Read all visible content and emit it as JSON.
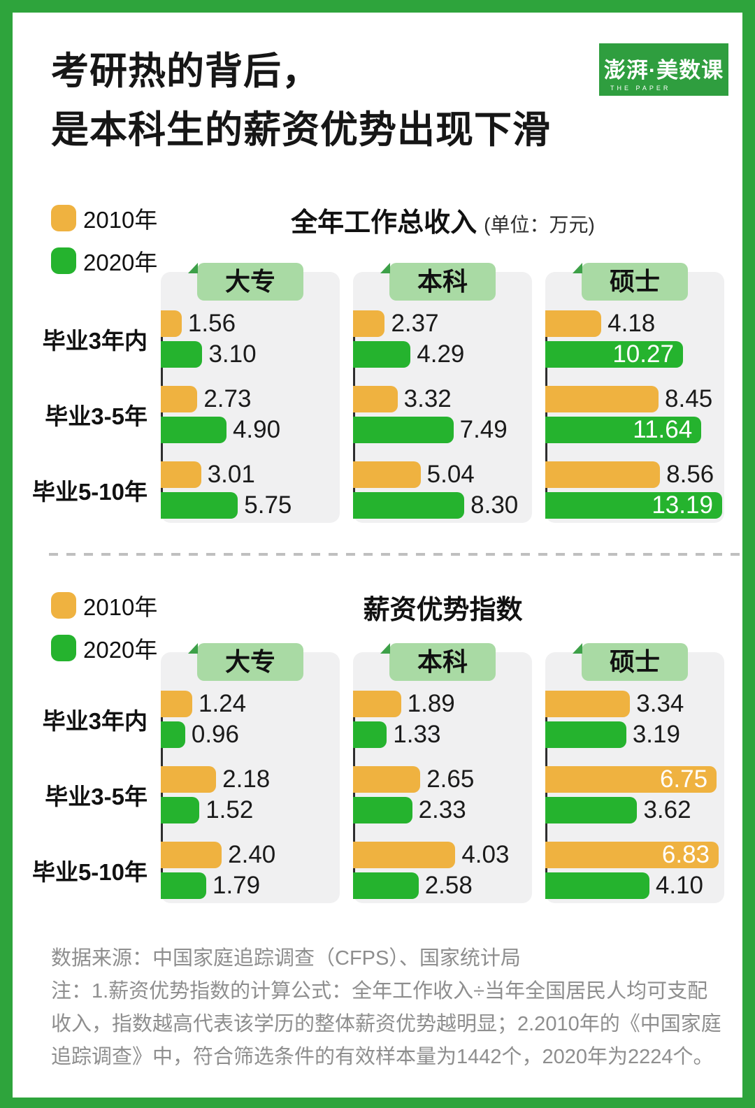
{
  "page": {
    "title_line1": "考研热的背后，",
    "title_line2": "是本科生的薪资优势出现下滑",
    "logo": {
      "main": "澎湃·美数课",
      "sub": "THE PAPER"
    }
  },
  "colors": {
    "frame_green": "#2EA43C",
    "bar_orange": "#EFB240",
    "bar_green": "#25B32E",
    "tab_bg": "#A9DAA4",
    "tab_fold": "#3DA048",
    "panel_bg": "#F0F0F1"
  },
  "chart_data": [
    {
      "type": "bar",
      "orientation": "horizontal",
      "title": "全年工作总收入",
      "unit_label": "(单位：万元)",
      "columns": [
        "大专",
        "本科",
        "硕士"
      ],
      "categories": [
        "毕业3年内",
        "毕业3-5年",
        "毕业5-10年"
      ],
      "series": [
        {
          "name": "2010年",
          "color": "#EFB240",
          "values": {
            "大专": [
              1.56,
              2.73,
              3.01
            ],
            "本科": [
              2.37,
              3.32,
              5.04
            ],
            "硕士": [
              4.18,
              8.45,
              8.56
            ]
          }
        },
        {
          "name": "2020年",
          "color": "#25B32E",
          "values": {
            "大专": [
              3.1,
              4.9,
              5.75
            ],
            "本科": [
              4.29,
              7.49,
              8.3
            ],
            "硕士": [
              10.27,
              11.64,
              13.19
            ]
          }
        }
      ],
      "xlim": [
        0,
        13.35
      ],
      "value_decimals": 2,
      "legend_position": "top-left",
      "grid": false
    },
    {
      "type": "bar",
      "orientation": "horizontal",
      "title": "薪资优势指数",
      "unit_label": "",
      "columns": [
        "大专",
        "本科",
        "硕士"
      ],
      "categories": [
        "毕业3年内",
        "毕业3-5年",
        "毕业5-10年"
      ],
      "series": [
        {
          "name": "2010年",
          "color": "#EFB240",
          "values": {
            "大专": [
              1.24,
              2.18,
              2.4
            ],
            "本科": [
              1.89,
              2.65,
              4.03
            ],
            "硕士": [
              3.34,
              6.75,
              6.83
            ]
          }
        },
        {
          "name": "2020年",
          "color": "#25B32E",
          "values": {
            "大专": [
              0.96,
              1.52,
              1.79
            ],
            "本科": [
              1.33,
              2.33,
              2.58
            ],
            "硕士": [
              3.19,
              3.62,
              4.1
            ]
          }
        }
      ],
      "xlim": [
        0,
        7.05
      ],
      "value_decimals": 2,
      "legend_position": "top-left",
      "grid": false
    }
  ],
  "footer": {
    "source": "数据来源：中国家庭追踪调查（CFPS）、国家统计局",
    "note": "注：1.薪资优势指数的计算公式：全年工作收入÷当年全国居民人均可支配收入，指数越高代表该学历的整体薪资优势越明显；2.2010年的《中国家庭追踪调查》中，符合筛选条件的有效样本量为1442个，2020年为2224个。"
  }
}
